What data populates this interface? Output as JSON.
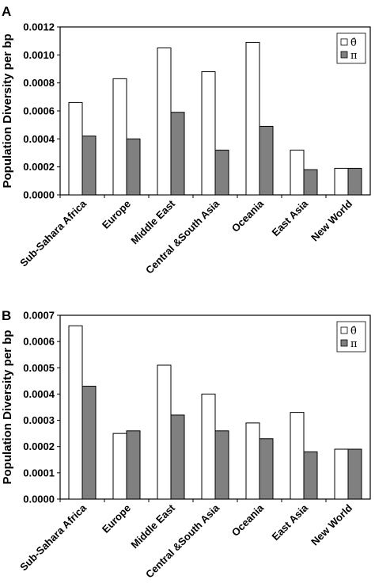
{
  "chart_data": [
    {
      "type": "bar",
      "panel": "A",
      "ylabel": "Population Diversity per bp",
      "ylim": [
        0,
        0.0012
      ],
      "yticks": [
        "0.0000",
        "0.0002",
        "0.0004",
        "0.0006",
        "0.0008",
        "0.0010",
        "0.0012"
      ],
      "categories": [
        "Sub-Sahara Africa",
        "Europe",
        "Middle East",
        "Central &South Asia",
        "Oceania",
        "East Asia",
        "New World"
      ],
      "series": [
        {
          "name": "θ̂",
          "color": "#ffffff",
          "values": [
            0.00066,
            0.00083,
            0.00105,
            0.00088,
            0.00109,
            0.00032,
            0.00019
          ]
        },
        {
          "name": "π",
          "color": "#808080",
          "values": [
            0.00042,
            0.0004,
            0.00059,
            0.00032,
            0.00049,
            0.00018,
            0.00019
          ]
        }
      ],
      "legend": "top-right",
      "grid": false
    },
    {
      "type": "bar",
      "panel": "B",
      "ylabel": "Population Diversity per bp",
      "ylim": [
        0,
        0.0007
      ],
      "yticks": [
        "0.0000",
        "0.0001",
        "0.0002",
        "0.0003",
        "0.0004",
        "0.0005",
        "0.0006",
        "0.0007"
      ],
      "categories": [
        "Sub-Sahara Africa",
        "Europe",
        "Middle East",
        "Central &South Asia",
        "Oceania",
        "East Asia",
        "New World"
      ],
      "series": [
        {
          "name": "θ̂",
          "color": "#ffffff",
          "values": [
            0.00066,
            0.00025,
            0.00051,
            0.0004,
            0.00029,
            0.00033,
            0.00019
          ]
        },
        {
          "name": "π",
          "color": "#808080",
          "values": [
            0.00043,
            0.00026,
            0.00032,
            0.00026,
            0.00023,
            0.00018,
            0.00019
          ]
        }
      ],
      "legend": "top-right",
      "grid": false
    }
  ]
}
